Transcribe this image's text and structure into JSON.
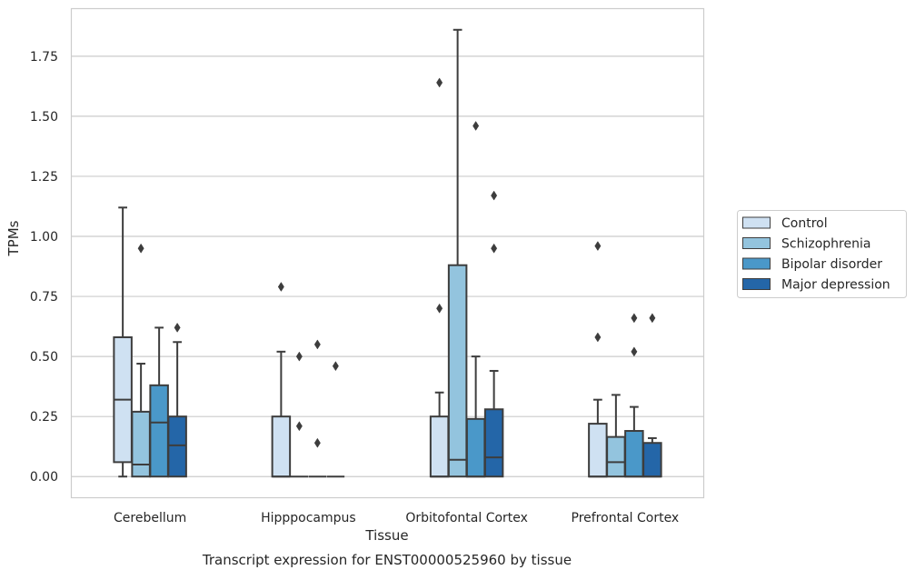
{
  "caption": "Transcript expression for ENST00000525960 by tissue",
  "chart_data": {
    "type": "box",
    "xlabel": "Tissue",
    "ylabel": "TPMs",
    "ylim": [
      -0.09,
      1.95
    ],
    "yticks": [
      "0.00",
      "0.25",
      "0.50",
      "0.75",
      "1.00",
      "1.25",
      "1.50",
      "1.75"
    ],
    "grid": "horizontal",
    "legend_position": "right",
    "categories": [
      "Cerebellum",
      "Hipppocampus",
      "Orbitofontal Cortex",
      "Prefrontal Cortex"
    ],
    "series": [
      {
        "name": "Control",
        "color": "#cfe1f2",
        "boxes": [
          {
            "q1": 0.06,
            "median": 0.32,
            "q3": 0.58,
            "whislo": 0.0,
            "whishi": 1.12,
            "fliers": []
          },
          {
            "q1": 0.0,
            "median": 0.0,
            "q3": 0.25,
            "whislo": 0.0,
            "whishi": 0.52,
            "fliers": [
              0.79
            ]
          },
          {
            "q1": 0.0,
            "median": 0.0,
            "q3": 0.25,
            "whislo": 0.0,
            "whishi": 0.35,
            "fliers": [
              0.7,
              1.64
            ]
          },
          {
            "q1": 0.0,
            "median": 0.0,
            "q3": 0.22,
            "whislo": 0.0,
            "whishi": 0.32,
            "fliers": [
              0.58,
              0.96
            ]
          }
        ]
      },
      {
        "name": "Schizophrenia",
        "color": "#93c4de",
        "boxes": [
          {
            "q1": 0.0,
            "median": 0.05,
            "q3": 0.27,
            "whislo": 0.0,
            "whishi": 0.47,
            "fliers": [
              0.95
            ]
          },
          {
            "q1": 0.0,
            "median": 0.0,
            "q3": 0.0,
            "whislo": 0.0,
            "whishi": 0.0,
            "fliers": [
              0.21,
              0.5
            ]
          },
          {
            "q1": 0.0,
            "median": 0.07,
            "q3": 0.88,
            "whislo": 0.0,
            "whishi": 1.86,
            "fliers": []
          },
          {
            "q1": 0.0,
            "median": 0.06,
            "q3": 0.165,
            "whislo": 0.0,
            "whishi": 0.34,
            "fliers": []
          }
        ]
      },
      {
        "name": "Bipolar disorder",
        "color": "#4a98c9",
        "boxes": [
          {
            "q1": 0.0,
            "median": 0.225,
            "q3": 0.38,
            "whislo": 0.0,
            "whishi": 0.62,
            "fliers": []
          },
          {
            "q1": 0.0,
            "median": 0.0,
            "q3": 0.0,
            "whislo": 0.0,
            "whishi": 0.0,
            "fliers": [
              0.14,
              0.55
            ]
          },
          {
            "q1": 0.0,
            "median": 0.0,
            "q3": 0.24,
            "whislo": 0.0,
            "whishi": 0.5,
            "fliers": [
              1.46
            ]
          },
          {
            "q1": 0.0,
            "median": 0.0,
            "q3": 0.19,
            "whislo": 0.0,
            "whishi": 0.29,
            "fliers": [
              0.52,
              0.66
            ]
          }
        ]
      },
      {
        "name": "Major depression",
        "color": "#2466a8",
        "boxes": [
          {
            "q1": 0.0,
            "median": 0.13,
            "q3": 0.25,
            "whislo": 0.0,
            "whishi": 0.56,
            "fliers": [
              0.62
            ]
          },
          {
            "q1": 0.0,
            "median": 0.0,
            "q3": 0.0,
            "whislo": 0.0,
            "whishi": 0.0,
            "fliers": [
              0.46
            ]
          },
          {
            "q1": 0.0,
            "median": 0.08,
            "q3": 0.28,
            "whislo": 0.0,
            "whishi": 0.44,
            "fliers": [
              0.95,
              1.17
            ]
          },
          {
            "q1": 0.0,
            "median": 0.0,
            "q3": 0.14,
            "whislo": 0.0,
            "whishi": 0.16,
            "fliers": [
              0.66
            ]
          }
        ]
      }
    ]
  }
}
